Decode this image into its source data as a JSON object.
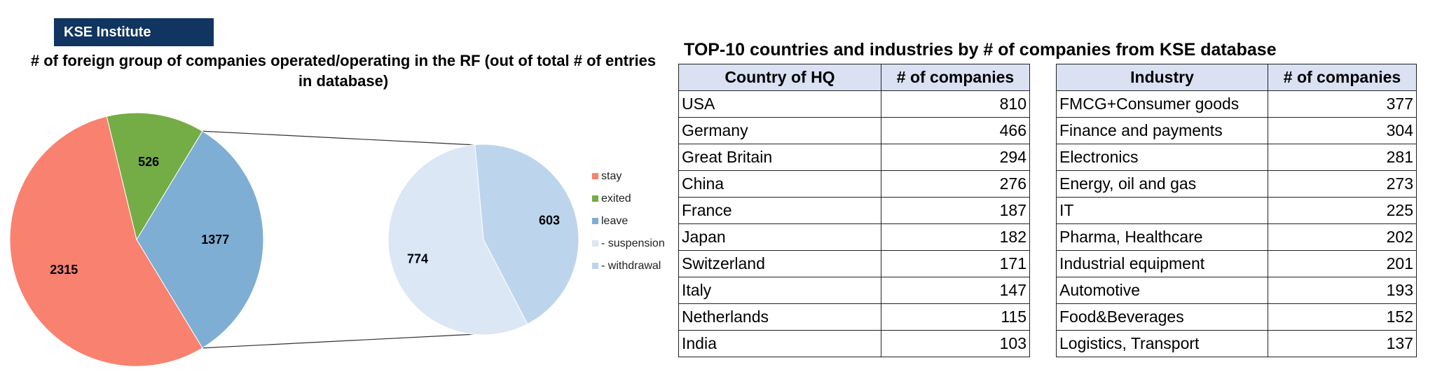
{
  "badge": "KSE Institute",
  "chart_data": [
    {
      "type": "pie",
      "title": "# of foreign group of companies operated/operating in the RF (out of total # of entries in database)",
      "slices": [
        {
          "label": "stay",
          "value": 2315,
          "color": "#f8826f"
        },
        {
          "label": "exited",
          "value": 526,
          "color": "#74ac45"
        },
        {
          "label": "leave",
          "value": 1377,
          "color": "#7eaed3"
        }
      ],
      "breakdown_of": "leave",
      "sub_slices": [
        {
          "label": "- suspension",
          "value": 774,
          "color": "#dbe7f4"
        },
        {
          "label": "- withdrawal",
          "value": 603,
          "color": "#bdd5ec"
        }
      ],
      "legend": [
        "stay",
        "exited",
        "leave",
        "- suspension",
        "- withdrawal"
      ],
      "legend_placement": "right"
    },
    {
      "type": "table",
      "title": "TOP-10 countries and industries by # of companies from KSE database",
      "countries": {
        "headers": [
          "Country of HQ",
          "# of companies"
        ],
        "rows": [
          [
            "USA",
            810
          ],
          [
            "Germany",
            466
          ],
          [
            "Great Britain",
            294
          ],
          [
            "China",
            276
          ],
          [
            "France",
            187
          ],
          [
            "Japan",
            182
          ],
          [
            "Switzerland",
            171
          ],
          [
            "Italy",
            147
          ],
          [
            "Netherlands",
            115
          ],
          [
            "India",
            103
          ]
        ]
      },
      "industries": {
        "headers": [
          "Industry",
          "# of companies"
        ],
        "rows": [
          [
            "FMCG+Consumer goods",
            377
          ],
          [
            "Finance and payments",
            304
          ],
          [
            "Electronics",
            281
          ],
          [
            "Energy, oil and gas",
            273
          ],
          [
            "IT",
            225
          ],
          [
            "Pharma, Healthcare",
            202
          ],
          [
            "Industrial equipment",
            201
          ],
          [
            "Automotive",
            193
          ],
          [
            "Food&Beverages",
            152
          ],
          [
            "Logistics, Transport",
            137
          ]
        ]
      }
    }
  ]
}
